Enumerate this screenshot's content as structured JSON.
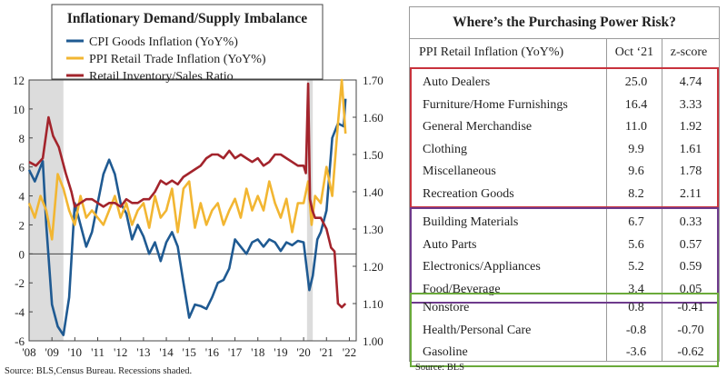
{
  "chart_data": [
    {
      "type": "line",
      "title": "Inflationary Demand/Supply Imbalance",
      "x_tick_labels": [
        "'08",
        "'09",
        "'10",
        "'11",
        "'12",
        "'13",
        "'14",
        "'15",
        "'16",
        "'17",
        "'18",
        "'19",
        "'20",
        "'21",
        "'22"
      ],
      "left_axis": {
        "ylim": [
          -6,
          12
        ],
        "ticks": [
          "-6",
          "-4",
          "-2",
          "0",
          "2",
          "4",
          "6",
          "8",
          "10",
          "12"
        ]
      },
      "right_axis": {
        "ylim": [
          1.0,
          1.7
        ],
        "ticks": [
          "1.00",
          "1.10",
          "1.20",
          "1.30",
          "1.40",
          "1.50",
          "1.60",
          "1.70"
        ]
      },
      "recessions": [
        [
          2008.0,
          2009.5
        ],
        [
          2020.15,
          2020.4
        ]
      ],
      "grid": false,
      "legend_position": "top-left",
      "series": [
        {
          "name": "CPI Goods Inflation (YoY%)",
          "axis": "left",
          "color": "#1f5a92",
          "x": [
            2008.0,
            2008.25,
            2008.5,
            2008.6,
            2008.75,
            2009.0,
            2009.25,
            2009.5,
            2009.75,
            2010.0,
            2010.25,
            2010.5,
            2010.75,
            2011.0,
            2011.25,
            2011.5,
            2011.75,
            2012.0,
            2012.25,
            2012.5,
            2012.75,
            2013.0,
            2013.25,
            2013.5,
            2013.75,
            2014.0,
            2014.25,
            2014.5,
            2014.75,
            2015.0,
            2015.25,
            2015.5,
            2015.75,
            2016.0,
            2016.25,
            2016.5,
            2016.75,
            2017.0,
            2017.25,
            2017.5,
            2017.75,
            2018.0,
            2018.25,
            2018.5,
            2018.75,
            2019.0,
            2019.25,
            2019.5,
            2019.75,
            2020.0,
            2020.25,
            2020.4,
            2020.6,
            2020.75,
            2021.0,
            2021.25,
            2021.5,
            2021.75,
            2021.83
          ],
          "y": [
            5.8,
            5.0,
            6.0,
            6.4,
            2.0,
            -3.5,
            -5.0,
            -5.6,
            -3.0,
            3.5,
            2.0,
            0.5,
            1.5,
            3.5,
            5.5,
            6.5,
            5.5,
            3.5,
            2.8,
            1.0,
            2.0,
            1.2,
            0.0,
            0.8,
            -0.5,
            0.8,
            1.5,
            0.5,
            -2.0,
            -4.4,
            -3.5,
            -3.6,
            -3.8,
            -3.0,
            -2.0,
            -1.8,
            -1.0,
            1.0,
            0.5,
            0.0,
            0.8,
            1.0,
            0.5,
            1.0,
            0.8,
            0.2,
            0.8,
            0.6,
            0.9,
            0.8,
            -2.5,
            -1.5,
            1.0,
            1.5,
            3.0,
            8.0,
            9.0,
            8.8,
            10.7
          ]
        },
        {
          "name": "PPI Retail Trade Inflation (YoY%)",
          "axis": "left",
          "color": "#f2b632",
          "x": [
            2008.0,
            2008.25,
            2008.5,
            2008.75,
            2009.0,
            2009.25,
            2009.5,
            2009.75,
            2010.0,
            2010.25,
            2010.5,
            2010.75,
            2011.0,
            2011.25,
            2011.5,
            2011.75,
            2012.0,
            2012.25,
            2012.5,
            2012.75,
            2013.0,
            2013.25,
            2013.5,
            2013.75,
            2014.0,
            2014.25,
            2014.5,
            2014.75,
            2015.0,
            2015.25,
            2015.5,
            2015.75,
            2016.0,
            2016.25,
            2016.5,
            2016.75,
            2017.0,
            2017.25,
            2017.5,
            2017.75,
            2018.0,
            2018.25,
            2018.5,
            2018.75,
            2019.0,
            2019.25,
            2019.5,
            2019.75,
            2020.0,
            2020.2,
            2020.35,
            2020.5,
            2020.75,
            2021.0,
            2021.25,
            2021.5,
            2021.67,
            2021.83
          ],
          "y": [
            3.5,
            2.5,
            4.0,
            3.0,
            1.0,
            5.5,
            4.5,
            3.0,
            2.0,
            4.0,
            2.5,
            3.0,
            2.5,
            2.0,
            3.0,
            4.0,
            2.5,
            3.5,
            2.0,
            3.0,
            3.5,
            1.8,
            4.0,
            2.5,
            3.0,
            4.5,
            1.5,
            4.5,
            5.0,
            1.8,
            3.5,
            2.0,
            3.0,
            3.5,
            2.0,
            3.0,
            3.8,
            2.5,
            4.5,
            3.0,
            4.0,
            3.0,
            5.0,
            3.5,
            2.5,
            3.8,
            1.5,
            3.5,
            3.5,
            5.0,
            2.0,
            4.0,
            3.5,
            6.0,
            4.0,
            9.0,
            12.0,
            8.3
          ]
        },
        {
          "name": "Retail Inventory/Sales Ratio",
          "axis": "right",
          "color": "#a3242c",
          "x": [
            2008.0,
            2008.3,
            2008.6,
            2008.85,
            2009.05,
            2009.3,
            2009.6,
            2009.85,
            2010.0,
            2010.25,
            2010.5,
            2010.75,
            2011.0,
            2011.25,
            2011.5,
            2011.75,
            2012.0,
            2012.25,
            2012.5,
            2012.75,
            2013.0,
            2013.25,
            2013.5,
            2013.75,
            2014.0,
            2014.25,
            2014.5,
            2014.75,
            2015.0,
            2015.25,
            2015.5,
            2015.75,
            2016.0,
            2016.25,
            2016.5,
            2016.75,
            2017.0,
            2017.25,
            2017.5,
            2017.75,
            2018.0,
            2018.25,
            2018.5,
            2018.75,
            2019.0,
            2019.25,
            2019.5,
            2019.75,
            2020.0,
            2020.1,
            2020.2,
            2020.28,
            2020.38,
            2020.5,
            2020.75,
            2021.0,
            2021.2,
            2021.35,
            2021.5,
            2021.67,
            2021.83
          ],
          "y": [
            1.48,
            1.47,
            1.49,
            1.6,
            1.55,
            1.52,
            1.45,
            1.4,
            1.36,
            1.37,
            1.38,
            1.38,
            1.37,
            1.36,
            1.37,
            1.37,
            1.36,
            1.38,
            1.37,
            1.37,
            1.38,
            1.38,
            1.4,
            1.43,
            1.42,
            1.43,
            1.42,
            1.44,
            1.45,
            1.46,
            1.47,
            1.49,
            1.5,
            1.5,
            1.49,
            1.51,
            1.49,
            1.5,
            1.49,
            1.48,
            1.49,
            1.47,
            1.48,
            1.5,
            1.5,
            1.49,
            1.48,
            1.47,
            1.47,
            1.45,
            1.69,
            1.38,
            1.35,
            1.33,
            1.33,
            1.3,
            1.25,
            1.24,
            1.1,
            1.09,
            1.1
          ]
        }
      ],
      "source": "Source: BLS,Census Bureau. Recessions shaded."
    },
    {
      "type": "table",
      "title": "Where’s the Purchasing Power Risk?",
      "columns": [
        "PPI Retail Inflation (YoY%)",
        "Oct ‘21",
        "z-score"
      ],
      "groups": [
        {
          "color": "#c8323c",
          "rows": [
            {
              "name": "Auto Dealers",
              "oct": "25.0",
              "z": "4.74"
            },
            {
              "name": "Furniture/Home Furnishings",
              "oct": "16.4",
              "z": "3.33"
            },
            {
              "name": "General Merchandise",
              "oct": "11.0",
              "z": "1.92"
            },
            {
              "name": "Clothing",
              "oct": "9.9",
              "z": "1.61"
            },
            {
              "name": "Miscellaneous",
              "oct": "9.6",
              "z": "1.78"
            },
            {
              "name": "Recreation Goods",
              "oct": "8.2",
              "z": "2.11"
            }
          ]
        },
        {
          "color": "#6e3a8c",
          "rows": [
            {
              "name": "Building Materials",
              "oct": "6.7",
              "z": "0.33"
            },
            {
              "name": "Auto Parts",
              "oct": "5.6",
              "z": "0.57"
            },
            {
              "name": "Electronics/Appliances",
              "oct": "5.2",
              "z": "0.59"
            },
            {
              "name": "Food/Beverage",
              "oct": "3.4",
              "z": "0.05"
            }
          ]
        },
        {
          "color": "#6aaa3a",
          "rows": [
            {
              "name": "Nonstore",
              "oct": "0.8",
              "z": "-0.41"
            },
            {
              "name": "Health/Personal Care",
              "oct": "-0.8",
              "z": "-0.70"
            },
            {
              "name": "Gasoline",
              "oct": "-3.6",
              "z": "-0.62"
            }
          ]
        }
      ],
      "source": "Source: BLS"
    }
  ]
}
